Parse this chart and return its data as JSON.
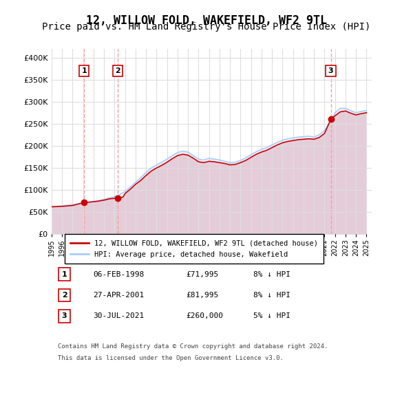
{
  "title": "12, WILLOW FOLD, WAKEFIELD, WF2 9TL",
  "subtitle": "Price paid vs. HM Land Registry's House Price Index (HPI)",
  "title_fontsize": 12,
  "subtitle_fontsize": 10,
  "ylabel_ticks": [
    "£0",
    "£50K",
    "£100K",
    "£150K",
    "£200K",
    "£250K",
    "£300K",
    "£350K",
    "£400K"
  ],
  "ytick_values": [
    0,
    50000,
    100000,
    150000,
    200000,
    250000,
    300000,
    350000,
    400000
  ],
  "ylim": [
    0,
    420000
  ],
  "xlim_start": 1995.0,
  "xlim_end": 2025.5,
  "background_color": "#ffffff",
  "plot_bg_color": "#ffffff",
  "grid_color": "#dddddd",
  "hpi_color": "#aaccff",
  "price_color": "#cc0000",
  "sale_marker_color": "#cc0000",
  "vline_color": "#ff9999",
  "vline_style": "--",
  "transactions": [
    {
      "label": "1",
      "date_str": "06-FEB-1998",
      "year": 1998.1,
      "price": 71995,
      "pct": "8% ↓ HPI"
    },
    {
      "label": "2",
      "date_str": "27-APR-2001",
      "year": 2001.3,
      "price": 81995,
      "pct": "8% ↓ HPI"
    },
    {
      "label": "3",
      "date_str": "30-JUL-2021",
      "year": 2021.6,
      "price": 260000,
      "pct": "5% ↓ HPI"
    }
  ],
  "hpi_years": [
    1995,
    1995.5,
    1996,
    1996.5,
    1997,
    1997.5,
    1998,
    1998.5,
    1999,
    1999.5,
    2000,
    2000.5,
    2001,
    2001.5,
    2002,
    2002.5,
    2003,
    2003.5,
    2004,
    2004.5,
    2005,
    2005.5,
    2006,
    2006.5,
    2007,
    2007.5,
    2008,
    2008.5,
    2009,
    2009.5,
    2010,
    2010.5,
    2011,
    2011.5,
    2012,
    2012.5,
    2013,
    2013.5,
    2014,
    2014.5,
    2015,
    2015.5,
    2016,
    2016.5,
    2017,
    2017.5,
    2018,
    2018.5,
    2019,
    2019.5,
    2020,
    2020.5,
    2021,
    2021.5,
    2022,
    2022.5,
    2023,
    2023.5,
    2024,
    2024.5,
    2025
  ],
  "hpi_values": [
    62000,
    63000,
    64000,
    65500,
    67000,
    68000,
    70000,
    72000,
    74000,
    76000,
    79000,
    82000,
    85000,
    90000,
    97000,
    107000,
    118000,
    128000,
    140000,
    150000,
    157000,
    163000,
    170000,
    178000,
    185000,
    188000,
    186000,
    178000,
    170000,
    168000,
    172000,
    170000,
    168000,
    165000,
    162000,
    163000,
    167000,
    173000,
    180000,
    187000,
    192000,
    196000,
    202000,
    208000,
    213000,
    216000,
    218000,
    220000,
    221000,
    222000,
    220000,
    225000,
    235000,
    252000,
    275000,
    285000,
    285000,
    280000,
    275000,
    278000,
    280000
  ],
  "price_years": [
    1995,
    1996,
    1997,
    1998.1,
    1998.5,
    1999,
    1999.5,
    2000,
    2000.5,
    2001.3,
    2001.8,
    2002,
    2002.5,
    2003,
    2003.5,
    2004,
    2004.5,
    2005,
    2005.5,
    2006,
    2006.5,
    2007,
    2007.5,
    2008,
    2008.5,
    2009,
    2009.5,
    2010,
    2010.5,
    2011,
    2011.5,
    2012,
    2012.5,
    2013,
    2013.5,
    2014,
    2014.5,
    2015,
    2015.5,
    2016,
    2016.5,
    2017,
    2017.5,
    2018,
    2018.5,
    2019,
    2019.5,
    2020,
    2020.5,
    2021,
    2021.6,
    2022,
    2022.5,
    2023,
    2023.5,
    2024,
    2024.5,
    2025
  ],
  "price_values": [
    62000,
    63000,
    65000,
    71995,
    72500,
    73500,
    75000,
    77000,
    80000,
    81995,
    84000,
    92000,
    102000,
    113000,
    122000,
    133000,
    143000,
    150000,
    156000,
    163000,
    171000,
    178000,
    181000,
    179000,
    172000,
    164000,
    162000,
    165000,
    164000,
    162000,
    160000,
    157000,
    158000,
    162000,
    167000,
    174000,
    181000,
    186000,
    190000,
    196000,
    202000,
    207000,
    210000,
    212000,
    214000,
    215000,
    216000,
    215000,
    219000,
    228000,
    260000,
    268000,
    277000,
    279000,
    274000,
    270000,
    273000,
    275000
  ],
  "legend_label_red": "12, WILLOW FOLD, WAKEFIELD, WF2 9TL (detached house)",
  "legend_label_blue": "HPI: Average price, detached house, Wakefield",
  "footer_line1": "Contains HM Land Registry data © Crown copyright and database right 2024.",
  "footer_line2": "This data is licensed under the Open Government Licence v3.0.",
  "xtick_years": [
    1995,
    1996,
    1997,
    1998,
    1999,
    2000,
    2001,
    2002,
    2003,
    2004,
    2005,
    2006,
    2007,
    2008,
    2009,
    2010,
    2011,
    2012,
    2013,
    2014,
    2015,
    2016,
    2017,
    2018,
    2019,
    2020,
    2021,
    2022,
    2023,
    2024,
    2025
  ]
}
